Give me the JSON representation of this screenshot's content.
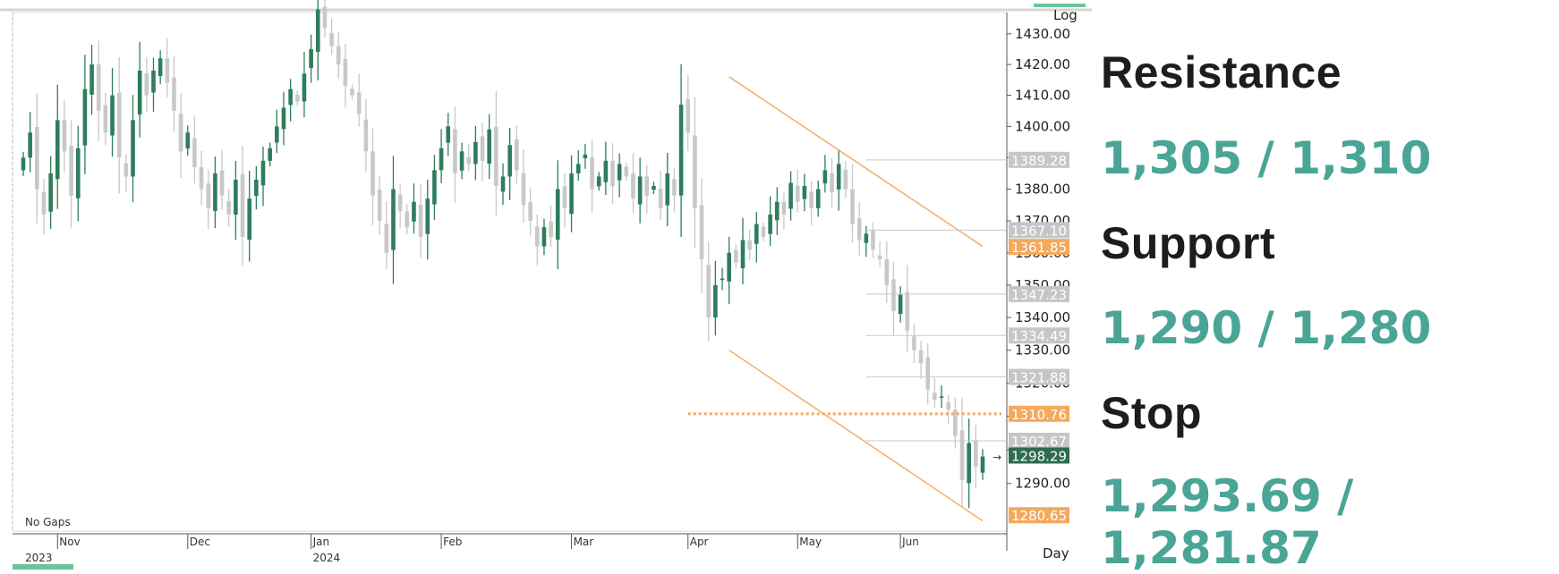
{
  "chart_data": {
    "type": "candlestick",
    "scale": "log",
    "scale_label": "Log",
    "period_label": "Day",
    "gaps_label": "No Gaps",
    "ylim": [
      1276,
      1437
    ],
    "y_ticks": [
      1290,
      1300,
      1310,
      1320,
      1330,
      1340,
      1350,
      1360,
      1370,
      1380,
      1390,
      1400,
      1410,
      1420,
      1430
    ],
    "y_tick_labels": [
      "1290.00",
      "1300.00",
      "1310.00",
      "1320.00",
      "1330.00",
      "1340.00",
      "1350.00",
      "1360.00",
      "1370.00",
      "1380.00",
      "1390.00",
      "1400.00",
      "1410.00",
      "1420.00",
      "1430.00"
    ],
    "months": [
      "Nov",
      "Dec",
      "Jan",
      "Feb",
      "Mar",
      "Apr",
      "May",
      "Jun"
    ],
    "years": [
      "2023",
      "2024"
    ],
    "closes": [
      1390,
      1398,
      1380,
      1372,
      1385,
      1402,
      1392,
      1378,
      1393,
      1412,
      1420,
      1405,
      1398,
      1410,
      1390,
      1384,
      1402,
      1418,
      1410,
      1418,
      1422,
      1414,
      1405,
      1392,
      1398,
      1387,
      1380,
      1374,
      1385,
      1378,
      1372,
      1383,
      1365,
      1377,
      1383,
      1389,
      1393,
      1400,
      1406,
      1412,
      1408,
      1417,
      1425,
      1438,
      1432,
      1426,
      1420,
      1413,
      1410,
      1404,
      1392,
      1378,
      1370,
      1360,
      1380,
      1373,
      1368,
      1376,
      1365,
      1377,
      1386,
      1393,
      1400,
      1385,
      1392,
      1388,
      1395,
      1389,
      1399,
      1381,
      1384,
      1394,
      1386,
      1375,
      1370,
      1362,
      1368,
      1365,
      1380,
      1374,
      1385,
      1388,
      1391,
      1380,
      1384,
      1389,
      1381,
      1388,
      1384,
      1377,
      1384,
      1378,
      1381,
      1374,
      1385,
      1378,
      1407,
      1398,
      1374,
      1358,
      1340,
      1350,
      1352,
      1360,
      1357,
      1364,
      1361,
      1369,
      1365,
      1372,
      1376,
      1372,
      1382,
      1376,
      1381,
      1374,
      1380,
      1386,
      1379,
      1388,
      1380,
      1369,
      1364,
      1366,
      1361,
      1358,
      1350,
      1342,
      1347,
      1336,
      1330,
      1326,
      1318,
      1315,
      1316,
      1312,
      1304,
      1291,
      1302,
      1295,
      1298
    ],
    "levels": [
      {
        "value": 1389.28,
        "label": "1389.28",
        "type": "resistance-line"
      },
      {
        "value": 1367.1,
        "label": "1367.10",
        "type": "resistance-line"
      },
      {
        "value": 1361.85,
        "label": "1361.85",
        "type": "highlight"
      },
      {
        "value": 1347.23,
        "label": "1347.23",
        "type": "resistance-line"
      },
      {
        "value": 1334.49,
        "label": "1334.49",
        "type": "resistance-line"
      },
      {
        "value": 1321.88,
        "label": "1321.88",
        "type": "resistance-line"
      },
      {
        "value": 1310.76,
        "label": "1310.76",
        "type": "highlight"
      },
      {
        "value": 1302.67,
        "label": "1302.67",
        "type": "resistance-line"
      },
      {
        "value": 1298.29,
        "label": "1298.29",
        "type": "last-price"
      },
      {
        "value": 1280.65,
        "label": "1280.65",
        "type": "highlight"
      }
    ],
    "dotted_level": 1310.76,
    "channel": {
      "upper": [
        {
          "i": 103,
          "v": 1416
        },
        {
          "i": 140,
          "v": 1362
        }
      ],
      "lower": [
        {
          "i": 103,
          "v": 1330
        },
        {
          "i": 140,
          "v": 1279
        }
      ]
    },
    "colors": {
      "up": "#2e7d5b",
      "down": "#c8c8c8",
      "channel": "#f4a95c",
      "highlight": "#f4a95c",
      "grey_label": "#c6c6c6",
      "last_price": "#2e6b4f",
      "accent": "#4aa596"
    }
  },
  "panel": {
    "resistance_title": "Resistance",
    "resistance_value": "1,305 / 1,310",
    "support_title": "Support",
    "support_value": "1,290 / 1,280",
    "stop_title": "Stop",
    "stop_value": "1,293.69 / 1,281.87"
  }
}
